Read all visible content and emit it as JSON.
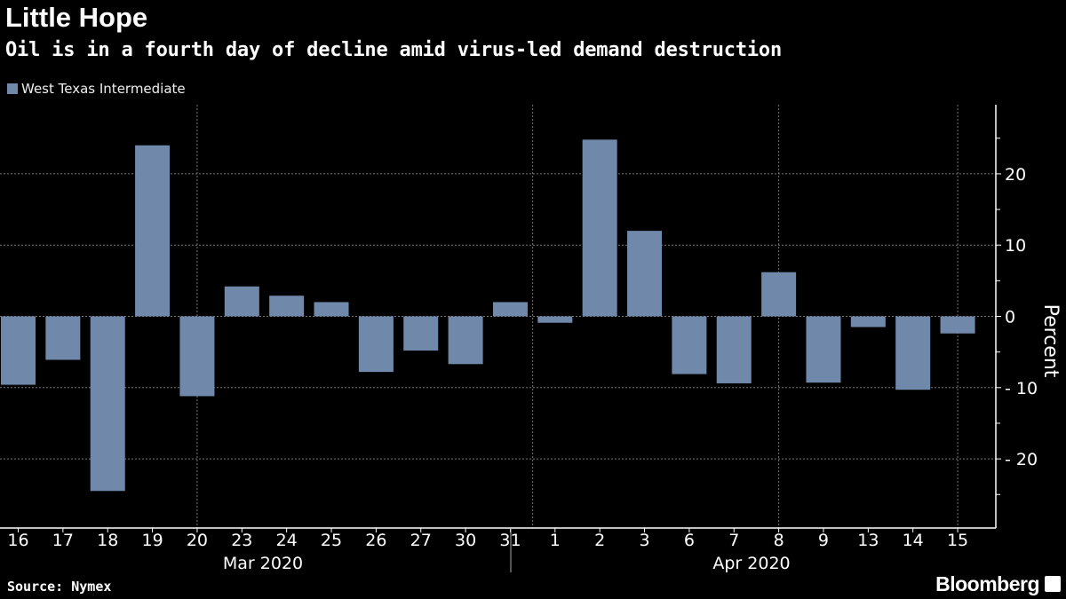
{
  "title": "Little Hope",
  "subtitle": "Oil is in a fourth day of decline amid virus-led demand destruction",
  "source": "Source: Nymex",
  "brand": "Bloomberg",
  "chart_data": {
    "type": "bar",
    "legend": [
      {
        "name": "West Texas Intermediate",
        "color": "#7089ab"
      }
    ],
    "legend_placement": "top-left",
    "categories": [
      "16",
      "17",
      "18",
      "19",
      "20",
      "23",
      "24",
      "25",
      "26",
      "27",
      "30",
      "31",
      "1",
      "2",
      "3",
      "6",
      "7",
      "8",
      "9",
      "13",
      "14",
      "15"
    ],
    "month_labels": [
      "Mar 2020",
      "Apr 2020"
    ],
    "series": [
      {
        "name": "West Texas Intermediate",
        "values": [
          -9.6,
          -6.1,
          -24.5,
          24.0,
          -11.2,
          4.2,
          2.9,
          2.0,
          -7.8,
          -4.8,
          -6.7,
          2.0,
          -0.9,
          24.8,
          12.0,
          -8.1,
          -9.4,
          6.2,
          -9.3,
          -1.5,
          -10.3,
          -2.4
        ]
      }
    ],
    "ylabel": "Percent",
    "yticks": [
      20,
      10,
      0,
      -10,
      -20
    ],
    "ylim": [
      -29.7,
      29.7
    ],
    "grid": true,
    "bar_color": "#7089ab"
  }
}
